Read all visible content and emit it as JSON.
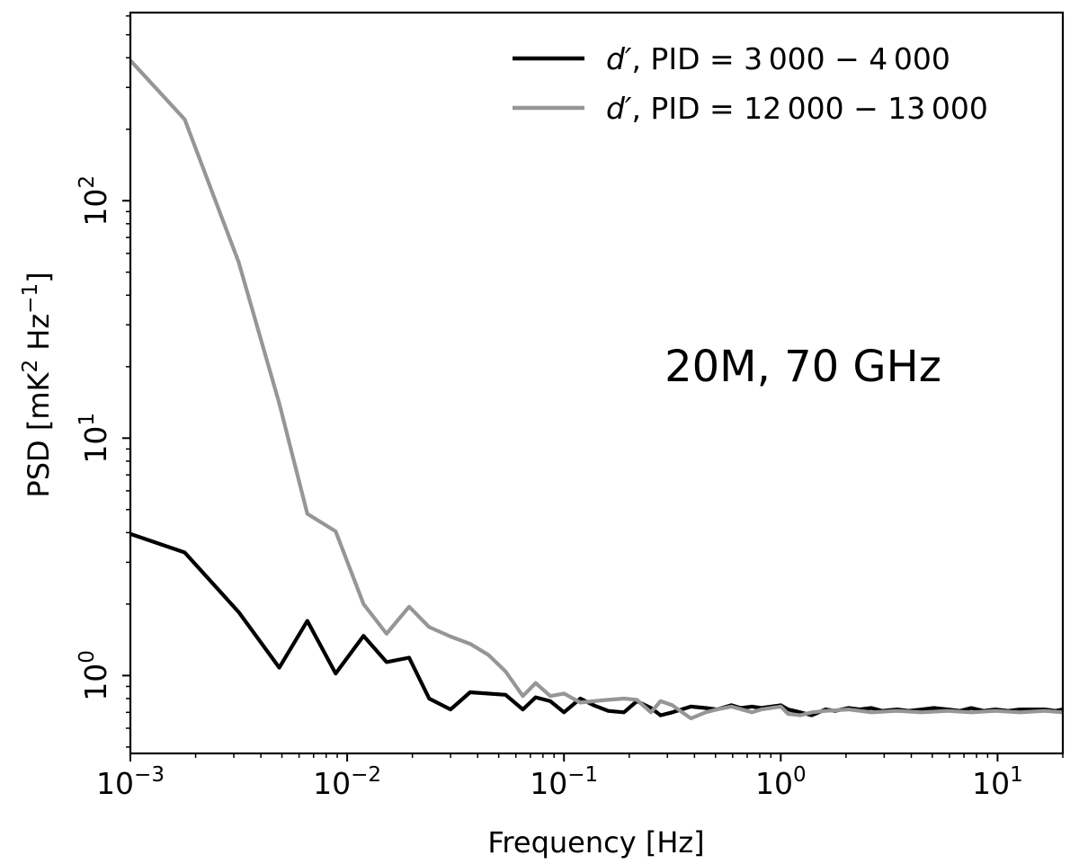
{
  "chart_data": {
    "type": "line",
    "title": "",
    "xlabel": "Frequency [Hz]",
    "ylabel": {
      "prefix": "PSD [mK",
      "sq": "2",
      "mid": " Hz",
      "exp": "−1",
      "suffix": "]"
    },
    "xscale": "log",
    "yscale": "log",
    "xlim": [
      0.001,
      20
    ],
    "ylim": [
      0.47,
      620
    ],
    "grid": false,
    "legend_position": "top-right",
    "annotation": "20M, 70 GHz",
    "x_ticks": [
      {
        "value": 0.001,
        "base": "10",
        "exp": "−3"
      },
      {
        "value": 0.01,
        "base": "10",
        "exp": "−2"
      },
      {
        "value": 0.1,
        "base": "10",
        "exp": "−1"
      },
      {
        "value": 1,
        "base": "10",
        "exp": "0"
      },
      {
        "value": 10,
        "base": "10",
        "exp": "1"
      }
    ],
    "y_ticks": [
      {
        "value": 1,
        "base": "10",
        "exp": "0"
      },
      {
        "value": 10,
        "base": "10",
        "exp": "1"
      },
      {
        "value": 100,
        "base": "10",
        "exp": "2"
      }
    ],
    "series": [
      {
        "name": "d′, PID = 3 000 − 4 000",
        "legend_italic": "d′",
        "legend_rest": ", PID = 3 000 − 4 000",
        "color": "#000000",
        "x": [
          0.001,
          0.00178,
          0.00316,
          0.00486,
          0.00655,
          0.00885,
          0.0119,
          0.0152,
          0.0193,
          0.0239,
          0.03,
          0.0369,
          0.0538,
          0.0646,
          0.074,
          0.0865,
          0.1,
          0.119,
          0.137,
          0.16,
          0.189,
          0.217,
          0.252,
          0.279,
          0.316,
          0.385,
          0.45,
          0.507,
          0.592,
          0.654,
          0.737,
          0.813,
          1.0,
          1.08,
          1.23,
          1.39,
          1.61,
          1.78,
          2.05,
          2.31,
          2.62,
          2.93,
          3.44,
          3.89,
          4.48,
          5.09,
          5.88,
          6.72,
          7.56,
          8.62,
          9.77,
          11.2,
          12.7,
          14.4,
          16.5,
          18.5,
          20.0
        ],
        "y": [
          3.95,
          3.3,
          1.85,
          1.08,
          1.7,
          1.02,
          1.47,
          1.14,
          1.19,
          0.8,
          0.72,
          0.85,
          0.83,
          0.72,
          0.81,
          0.78,
          0.7,
          0.8,
          0.75,
          0.71,
          0.7,
          0.78,
          0.73,
          0.68,
          0.7,
          0.74,
          0.73,
          0.72,
          0.75,
          0.73,
          0.74,
          0.73,
          0.75,
          0.72,
          0.7,
          0.68,
          0.72,
          0.71,
          0.73,
          0.72,
          0.73,
          0.71,
          0.72,
          0.71,
          0.72,
          0.73,
          0.72,
          0.71,
          0.73,
          0.71,
          0.72,
          0.71,
          0.72,
          0.72,
          0.72,
          0.71,
          0.72
        ]
      },
      {
        "name": "d′, PID = 12 000 − 13 000",
        "legend_italic": "d′",
        "legend_rest": ", PID = 12 000 − 13 000",
        "color": "#969696",
        "x": [
          0.001,
          0.00178,
          0.00316,
          0.00486,
          0.00655,
          0.00885,
          0.0119,
          0.0152,
          0.0193,
          0.0239,
          0.03,
          0.0369,
          0.0449,
          0.0538,
          0.0646,
          0.074,
          0.0865,
          0.1,
          0.119,
          0.137,
          0.16,
          0.189,
          0.217,
          0.252,
          0.279,
          0.316,
          0.385,
          0.45,
          0.507,
          0.592,
          0.737,
          0.813,
          1.0,
          1.08,
          1.23,
          1.39,
          1.61,
          2.05,
          2.62,
          3.44,
          4.48,
          5.88,
          7.56,
          9.77,
          12.7,
          16.5,
          20.0
        ],
        "y": [
          390,
          220,
          55,
          14,
          4.8,
          4.05,
          2.0,
          1.5,
          1.95,
          1.6,
          1.46,
          1.36,
          1.22,
          1.04,
          0.82,
          0.93,
          0.82,
          0.84,
          0.77,
          0.78,
          0.79,
          0.8,
          0.79,
          0.7,
          0.78,
          0.75,
          0.66,
          0.7,
          0.72,
          0.74,
          0.7,
          0.72,
          0.74,
          0.69,
          0.68,
          0.7,
          0.71,
          0.72,
          0.7,
          0.71,
          0.7,
          0.71,
          0.7,
          0.71,
          0.7,
          0.71,
          0.7
        ]
      }
    ]
  }
}
